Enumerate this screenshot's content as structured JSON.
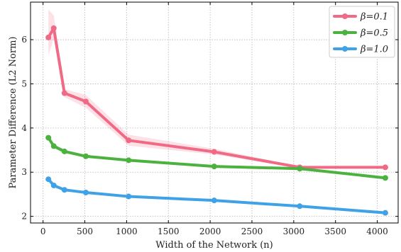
{
  "chart_data": {
    "type": "line",
    "title": "",
    "xlabel": "Width of the Network (n)",
    "ylabel": "Parameter Difference (L2 Norm)",
    "xlim": [
      -150,
      4250
    ],
    "ylim": [
      1.85,
      6.85
    ],
    "xticks": [
      0,
      500,
      1000,
      1500,
      2000,
      2500,
      3000,
      3500,
      4000
    ],
    "yticks": [
      2,
      3,
      4,
      5,
      6
    ],
    "grid": true,
    "grid_style": "dotted",
    "legend_position": "top-right",
    "x": [
      64,
      128,
      256,
      512,
      1024,
      2048,
      3072,
      4096
    ],
    "series": [
      {
        "name": "β=0.1",
        "color": "#f06a85",
        "values": [
          6.05,
          6.26,
          4.79,
          4.6,
          3.72,
          3.46,
          3.11,
          3.11
        ],
        "band_lower": [
          5.65,
          6.02,
          4.7,
          4.46,
          3.6,
          3.4,
          3.09,
          3.09
        ],
        "band_upper": [
          6.68,
          6.55,
          4.88,
          4.75,
          3.85,
          3.53,
          3.13,
          3.13
        ]
      },
      {
        "name": "β=0.5",
        "color": "#4cb23f",
        "values": [
          3.78,
          3.59,
          3.47,
          3.36,
          3.27,
          3.13,
          3.08,
          2.87
        ],
        "band_lower": [
          3.72,
          3.54,
          3.43,
          3.33,
          3.24,
          3.1,
          3.05,
          2.85
        ],
        "band_upper": [
          3.85,
          3.64,
          3.51,
          3.39,
          3.3,
          3.16,
          3.11,
          2.89
        ]
      },
      {
        "name": "β=1.0",
        "color": "#3fa2e6",
        "values": [
          2.84,
          2.7,
          2.6,
          2.54,
          2.45,
          2.36,
          2.23,
          2.08
        ],
        "band_lower": [
          2.8,
          2.65,
          2.57,
          2.51,
          2.42,
          2.33,
          2.21,
          2.06
        ],
        "band_upper": [
          2.88,
          2.74,
          2.63,
          2.57,
          2.48,
          2.39,
          2.25,
          2.1
        ]
      }
    ]
  }
}
